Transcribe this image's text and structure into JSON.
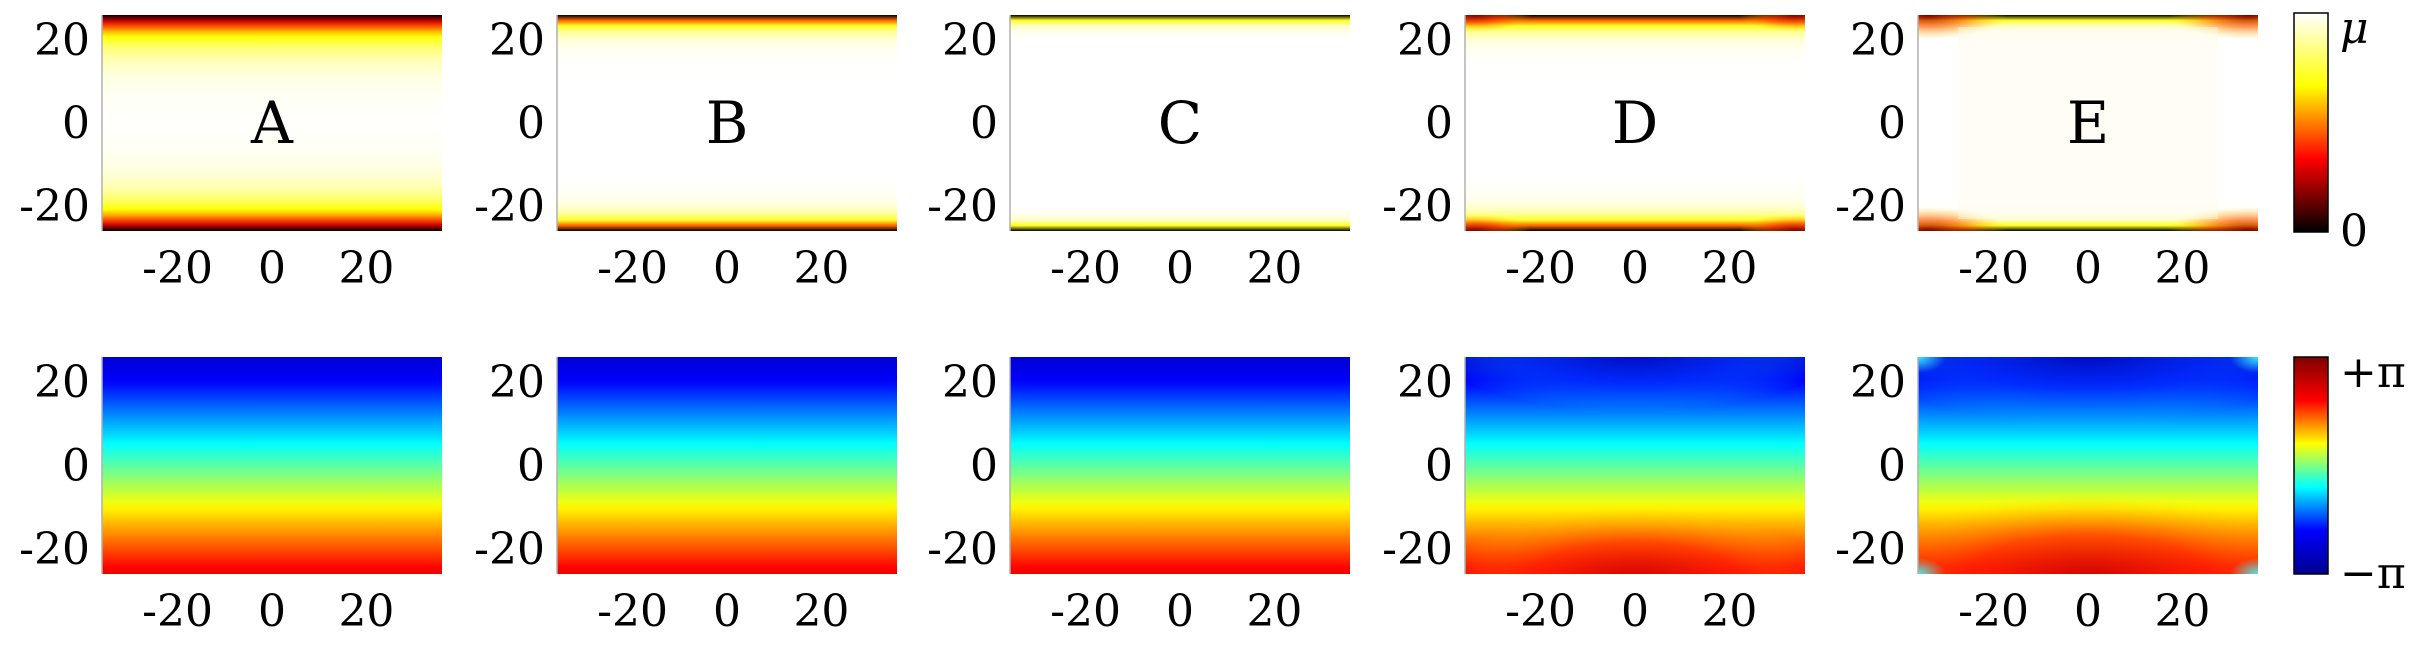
{
  "chart_data": {
    "type": "heatmap",
    "panel_labels": [
      "A",
      "B",
      "C",
      "D",
      "E"
    ],
    "rows": [
      {
        "name": "",
        "quantity": "density",
        "colormap": "hot",
        "colorbar": {
          "max_label": "μ",
          "min_label": "0"
        },
        "edge_widths": [
          9,
          4,
          2,
          4,
          2
        ],
        "corner_effect": [
          0,
          0,
          0,
          0.6,
          1.0
        ]
      },
      {
        "name": "",
        "quantity": "phase",
        "colormap": "jet",
        "colorbar": {
          "max_label": "+π",
          "min_label": "−π"
        },
        "curvature": [
          0,
          0,
          0,
          0.6,
          1.0
        ]
      }
    ],
    "x_ticks": [
      -20,
      0,
      20
    ],
    "y_ticks": [
      20,
      0,
      -20
    ],
    "xlim": [
      -36,
      36
    ],
    "ylim": [
      -26,
      26
    ],
    "grid": false
  },
  "axis_text": {
    "x_ticks": [
      "-20",
      "0",
      "20"
    ],
    "y_ticks": [
      "20",
      "0",
      "-20"
    ]
  },
  "colors": {
    "hot_stops": [
      "#000000",
      "#ff0000",
      "#ffff00",
      "#ffffff"
    ],
    "jet_stops": [
      "#00008f",
      "#0000ff",
      "#00ffff",
      "#ffff00",
      "#ff0000",
      "#800000"
    ]
  }
}
